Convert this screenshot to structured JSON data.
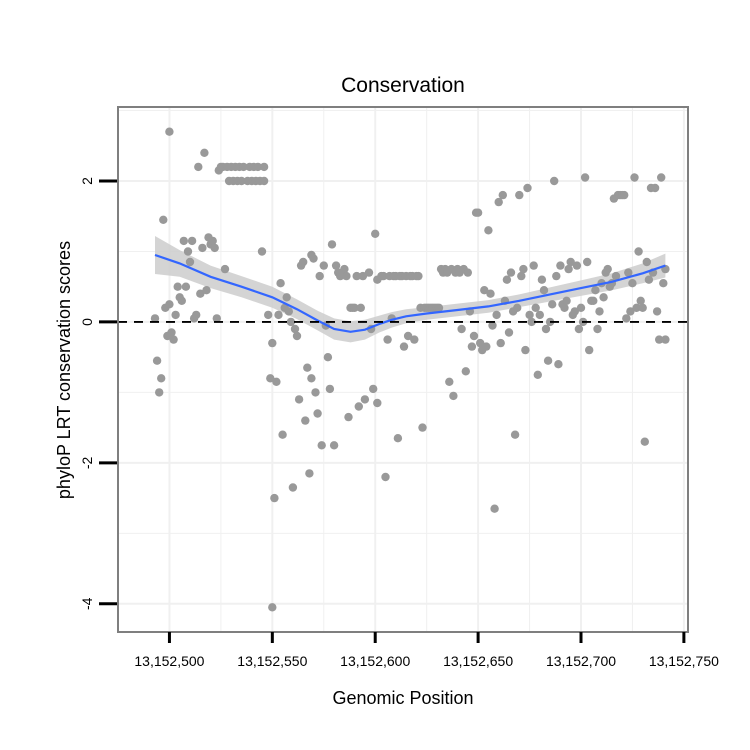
{
  "chart_data": {
    "type": "scatter",
    "title": "Conservation",
    "xlabel": "Genomic Position",
    "ylabel": "phyloP LRT conservation scores",
    "xlim": [
      13152475,
      13152752
    ],
    "ylim": [
      -4.4,
      3.05
    ],
    "xticks": [
      13152500,
      13152550,
      13152600,
      13152650,
      13152700,
      13152750
    ],
    "xtick_labels": [
      "13,152,500",
      "13,152,550",
      "13,152,600",
      "13,152,650",
      "13,152,700",
      "13,152,750"
    ],
    "yticks": [
      -4,
      -2,
      0,
      2
    ],
    "ytick_labels": [
      "-4",
      "-2",
      "0",
      "2"
    ],
    "reference_line": {
      "y": 0,
      "style": "dashed"
    },
    "grid": true,
    "colors": {
      "points": "#999999",
      "smooth_line": "#3366ff",
      "ribbon": "#cccccc",
      "background": "#ffffff",
      "grid": "#f0f0f0",
      "frame": "#7f7f7f"
    },
    "points": [
      [
        13152493,
        0.05
      ],
      [
        13152494,
        -0.55
      ],
      [
        13152495,
        -1.0
      ],
      [
        13152496,
        -0.8
      ],
      [
        13152497,
        1.45
      ],
      [
        13152498,
        0.2
      ],
      [
        13152499,
        -0.2
      ],
      [
        13152500,
        0.25
      ],
      [
        13152500,
        2.7
      ],
      [
        13152501,
        -0.15
      ],
      [
        13152502,
        -0.25
      ],
      [
        13152503,
        0.1
      ],
      [
        13152504,
        0.5
      ],
      [
        13152505,
        0.35
      ],
      [
        13152506,
        0.3
      ],
      [
        13152507,
        1.15
      ],
      [
        13152508,
        0.5
      ],
      [
        13152509,
        1.0
      ],
      [
        13152510,
        0.85
      ],
      [
        13152511,
        1.15
      ],
      [
        13152512,
        0.05
      ],
      [
        13152513,
        0.1
      ],
      [
        13152514,
        2.2
      ],
      [
        13152515,
        0.4
      ],
      [
        13152516,
        1.05
      ],
      [
        13152517,
        2.4
      ],
      [
        13152518,
        0.45
      ],
      [
        13152519,
        1.2
      ],
      [
        13152520,
        1.1
      ],
      [
        13152521,
        1.15
      ],
      [
        13152522,
        1.05
      ],
      [
        13152523,
        0.05
      ],
      [
        13152524,
        2.15
      ],
      [
        13152525,
        2.2
      ],
      [
        13152526,
        2.2
      ],
      [
        13152527,
        0.75
      ],
      [
        13152528,
        2.2
      ],
      [
        13152529,
        2.0
      ],
      [
        13152530,
        2.2
      ],
      [
        13152531,
        2.0
      ],
      [
        13152532,
        2.2
      ],
      [
        13152533,
        2.0
      ],
      [
        13152534,
        2.2
      ],
      [
        13152535,
        2.0
      ],
      [
        13152536,
        2.2
      ],
      [
        13152538,
        2.0
      ],
      [
        13152539,
        2.2
      ],
      [
        13152540,
        2.0
      ],
      [
        13152541,
        2.2
      ],
      [
        13152542,
        2.0
      ],
      [
        13152543,
        2.2
      ],
      [
        13152544,
        2.0
      ],
      [
        13152545,
        1.0
      ],
      [
        13152546,
        2.0
      ],
      [
        13152546,
        2.2
      ],
      [
        13152548,
        0.1
      ],
      [
        13152549,
        -0.8
      ],
      [
        13152550,
        -0.3
      ],
      [
        13152551,
        -2.5
      ],
      [
        13152550,
        -4.05
      ],
      [
        13152552,
        -0.85
      ],
      [
        13152553,
        0.1
      ],
      [
        13152554,
        0.55
      ],
      [
        13152555,
        -1.6
      ],
      [
        13152556,
        0.2
      ],
      [
        13152557,
        0.35
      ],
      [
        13152558,
        0.15
      ],
      [
        13152559,
        0.0
      ],
      [
        13152560,
        -2.35
      ],
      [
        13152561,
        -0.1
      ],
      [
        13152562,
        -0.2
      ],
      [
        13152563,
        -1.1
      ],
      [
        13152564,
        0.8
      ],
      [
        13152565,
        0.85
      ],
      [
        13152566,
        -1.4
      ],
      [
        13152567,
        -0.65
      ],
      [
        13152568,
        -2.15
      ],
      [
        13152569,
        0.95
      ],
      [
        13152569,
        -0.8
      ],
      [
        13152570,
        0.9
      ],
      [
        13152571,
        -1.0
      ],
      [
        13152572,
        -1.3
      ],
      [
        13152573,
        0.65
      ],
      [
        13152574,
        -1.75
      ],
      [
        13152575,
        0.8
      ],
      [
        13152576,
        -0.05
      ],
      [
        13152577,
        -0.5
      ],
      [
        13152578,
        -0.95
      ],
      [
        13152579,
        1.1
      ],
      [
        13152580,
        -1.75
      ],
      [
        13152581,
        0.8
      ],
      [
        13152582,
        0.7
      ],
      [
        13152583,
        0.65
      ],
      [
        13152584,
        0.7
      ],
      [
        13152585,
        0.75
      ],
      [
        13152586,
        0.65
      ],
      [
        13152587,
        -1.35
      ],
      [
        13152588,
        0.2
      ],
      [
        13152589,
        0.2
      ],
      [
        13152590,
        0.2
      ],
      [
        13152591,
        0.65
      ],
      [
        13152592,
        -1.2
      ],
      [
        13152593,
        0.2
      ],
      [
        13152594,
        0.65
      ],
      [
        13152595,
        -1.1
      ],
      [
        13152597,
        0.7
      ],
      [
        13152598,
        -0.1
      ],
      [
        13152599,
        -0.95
      ],
      [
        13152600,
        1.25
      ],
      [
        13152601,
        0.6
      ],
      [
        13152601,
        -1.15
      ],
      [
        13152603,
        0.65
      ],
      [
        13152604,
        0.65
      ],
      [
        13152605,
        -2.2
      ],
      [
        13152606,
        -0.25
      ],
      [
        13152607,
        0.65
      ],
      [
        13152608,
        0.05
      ],
      [
        13152609,
        0.65
      ],
      [
        13152610,
        0.65
      ],
      [
        13152611,
        -1.65
      ],
      [
        13152612,
        0.65
      ],
      [
        13152613,
        0.65
      ],
      [
        13152614,
        -0.35
      ],
      [
        13152615,
        0.65
      ],
      [
        13152616,
        -0.2
      ],
      [
        13152617,
        0.65
      ],
      [
        13152618,
        0.65
      ],
      [
        13152619,
        -0.25
      ],
      [
        13152620,
        0.65
      ],
      [
        13152621,
        0.65
      ],
      [
        13152622,
        0.2
      ],
      [
        13152623,
        -1.5
      ],
      [
        13152624,
        0.2
      ],
      [
        13152625,
        0.2
      ],
      [
        13152626,
        0.2
      ],
      [
        13152627,
        0.2
      ],
      [
        13152628,
        0.2
      ],
      [
        13152629,
        0.2
      ],
      [
        13152630,
        0.2
      ],
      [
        13152631,
        0.2
      ],
      [
        13152632,
        0.75
      ],
      [
        13152633,
        0.7
      ],
      [
        13152634,
        0.75
      ],
      [
        13152635,
        0.7
      ],
      [
        13152636,
        -0.85
      ],
      [
        13152637,
        0.75
      ],
      [
        13152638,
        -1.05
      ],
      [
        13152639,
        0.7
      ],
      [
        13152640,
        0.75
      ],
      [
        13152641,
        0.7
      ],
      [
        13152642,
        -0.1
      ],
      [
        13152643,
        0.75
      ],
      [
        13152644,
        -0.7
      ],
      [
        13152645,
        0.7
      ],
      [
        13152646,
        0.15
      ],
      [
        13152647,
        -0.35
      ],
      [
        13152648,
        -0.2
      ],
      [
        13152649,
        1.55
      ],
      [
        13152650,
        1.55
      ],
      [
        13152651,
        -0.3
      ],
      [
        13152652,
        -0.4
      ],
      [
        13152653,
        0.45
      ],
      [
        13152654,
        -0.35
      ],
      [
        13152655,
        1.3
      ],
      [
        13152656,
        0.4
      ],
      [
        13152657,
        -0.05
      ],
      [
        13152658,
        -2.65
      ],
      [
        13152659,
        0.1
      ],
      [
        13152660,
        1.7
      ],
      [
        13152661,
        -0.3
      ],
      [
        13152662,
        1.8
      ],
      [
        13152663,
        0.3
      ],
      [
        13152664,
        0.6
      ],
      [
        13152665,
        -0.15
      ],
      [
        13152666,
        0.7
      ],
      [
        13152667,
        0.15
      ],
      [
        13152668,
        -1.6
      ],
      [
        13152669,
        0.2
      ],
      [
        13152670,
        1.8
      ],
      [
        13152671,
        0.65
      ],
      [
        13152672,
        0.75
      ],
      [
        13152673,
        -0.4
      ],
      [
        13152674,
        1.9
      ],
      [
        13152675,
        0.1
      ],
      [
        13152676,
        0.0
      ],
      [
        13152677,
        0.8
      ],
      [
        13152678,
        0.2
      ],
      [
        13152679,
        -0.75
      ],
      [
        13152680,
        0.1
      ],
      [
        13152681,
        0.6
      ],
      [
        13152682,
        0.45
      ],
      [
        13152683,
        -0.1
      ],
      [
        13152684,
        -0.55
      ],
      [
        13152685,
        0.0
      ],
      [
        13152686,
        0.25
      ],
      [
        13152687,
        2.0
      ],
      [
        13152688,
        0.65
      ],
      [
        13152689,
        -0.6
      ],
      [
        13152690,
        0.8
      ],
      [
        13152691,
        0.25
      ],
      [
        13152692,
        0.2
      ],
      [
        13152693,
        0.3
      ],
      [
        13152694,
        0.75
      ],
      [
        13152695,
        0.85
      ],
      [
        13152696,
        0.1
      ],
      [
        13152697,
        0.15
      ],
      [
        13152698,
        0.8
      ],
      [
        13152699,
        -0.1
      ],
      [
        13152700,
        0.2
      ],
      [
        13152701,
        0.0
      ],
      [
        13152702,
        2.05
      ],
      [
        13152703,
        0.85
      ],
      [
        13152704,
        -0.4
      ],
      [
        13152705,
        0.3
      ],
      [
        13152706,
        0.3
      ],
      [
        13152707,
        0.45
      ],
      [
        13152708,
        -0.1
      ],
      [
        13152709,
        0.15
      ],
      [
        13152710,
        0.55
      ],
      [
        13152711,
        0.35
      ],
      [
        13152712,
        0.7
      ],
      [
        13152713,
        0.75
      ],
      [
        13152714,
        0.5
      ],
      [
        13152715,
        0.55
      ],
      [
        13152716,
        1.75
      ],
      [
        13152717,
        0.65
      ],
      [
        13152718,
        1.8
      ],
      [
        13152719,
        1.8
      ],
      [
        13152720,
        1.8
      ],
      [
        13152721,
        1.8
      ],
      [
        13152722,
        0.05
      ],
      [
        13152723,
        0.7
      ],
      [
        13152724,
        0.15
      ],
      [
        13152725,
        0.55
      ],
      [
        13152726,
        2.05
      ],
      [
        13152727,
        0.2
      ],
      [
        13152728,
        1.0
      ],
      [
        13152729,
        0.3
      ],
      [
        13152730,
        0.2
      ],
      [
        13152731,
        -1.7
      ],
      [
        13152732,
        0.85
      ],
      [
        13152733,
        0.6
      ],
      [
        13152734,
        1.9
      ],
      [
        13152735,
        0.7
      ],
      [
        13152736,
        1.9
      ],
      [
        13152737,
        0.15
      ],
      [
        13152738,
        -0.25
      ],
      [
        13152739,
        2.05
      ],
      [
        13152740,
        0.55
      ],
      [
        13152741,
        -0.25
      ],
      [
        13152741,
        0.75
      ]
    ],
    "smooth": [
      [
        13152493,
        0.95
      ],
      [
        13152505,
        0.83
      ],
      [
        13152520,
        0.64
      ],
      [
        13152535,
        0.5
      ],
      [
        13152550,
        0.35
      ],
      [
        13152562,
        0.18
      ],
      [
        13152572,
        0.02
      ],
      [
        13152580,
        -0.1
      ],
      [
        13152588,
        -0.14
      ],
      [
        13152595,
        -0.11
      ],
      [
        13152602,
        -0.03
      ],
      [
        13152608,
        0.03
      ],
      [
        13152615,
        0.08
      ],
      [
        13152625,
        0.12
      ],
      [
        13152640,
        0.17
      ],
      [
        13152655,
        0.22
      ],
      [
        13152670,
        0.3
      ],
      [
        13152685,
        0.39
      ],
      [
        13152700,
        0.48
      ],
      [
        13152715,
        0.57
      ],
      [
        13152730,
        0.69
      ],
      [
        13152741,
        0.8
      ]
    ],
    "ribbon_half_width": [
      0.27,
      0.19,
      0.16,
      0.15,
      0.15,
      0.14,
      0.14,
      0.15,
      0.15,
      0.14,
      0.12,
      0.11,
      0.1,
      0.09,
      0.09,
      0.09,
      0.09,
      0.1,
      0.11,
      0.12,
      0.14,
      0.17
    ]
  }
}
